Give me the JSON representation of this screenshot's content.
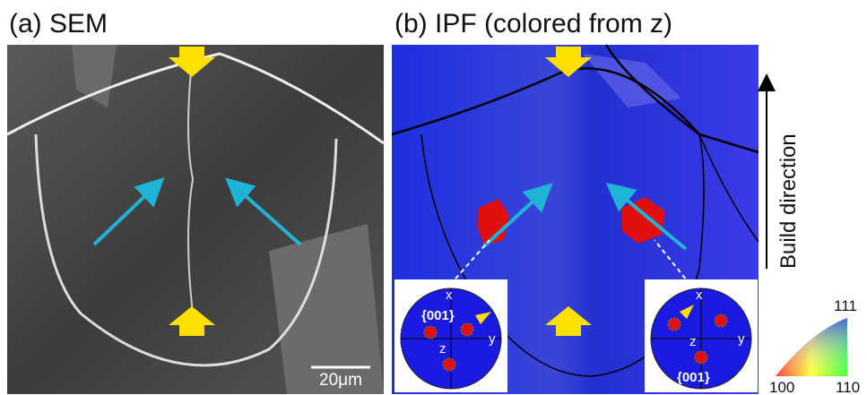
{
  "panels": [
    {
      "title": "(a) SEM",
      "scale_bar": "20μm"
    },
    {
      "title": "(b) IPF (colored from z)",
      "insets": [
        {
          "x": "x",
          "y": "y",
          "z": "z",
          "plane": "{001}"
        },
        {
          "x": "x",
          "y": "y",
          "z": "z",
          "plane": "{001}"
        }
      ]
    }
  ],
  "build_direction": "Build direction",
  "color_key": {
    "top": "111",
    "left": "100",
    "right": "110"
  }
}
